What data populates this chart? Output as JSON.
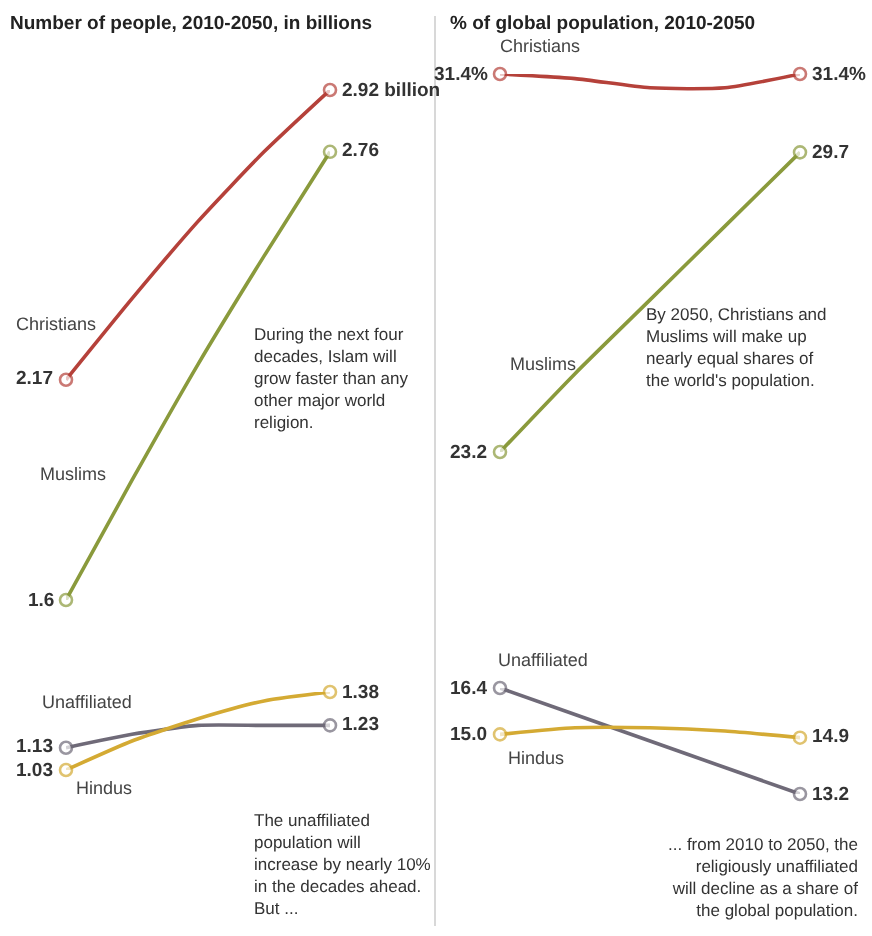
{
  "chart_data": [
    {
      "type": "line",
      "title": "Number of people, 2010-2050, in billions",
      "categories": [
        null,
        null,
        null,
        null,
        null
      ],
      "series": [
        {
          "name": "Christians",
          "color": "#b5413a",
          "values": [
            2.17,
            2.38,
            2.58,
            2.76,
            2.92
          ],
          "value_labels": [
            "2.17",
            null,
            null,
            null,
            "2.92 billion"
          ]
        },
        {
          "name": "Muslims",
          "color": "#8a9a3c",
          "values": [
            1.6,
            1.91,
            2.21,
            2.49,
            2.76
          ],
          "value_labels": [
            "1.6",
            null,
            null,
            null,
            "2.76"
          ]
        }
      ],
      "annotations": [
        "During the next four decades, Islam will grow faster than any other major world religion."
      ]
    },
    {
      "type": "line",
      "categories": [
        null,
        null,
        null,
        null,
        null
      ],
      "series": [
        {
          "name": "Unaffiliated",
          "color": "#6f6a78",
          "values": [
            1.13,
            1.19,
            1.23,
            1.23,
            1.23
          ],
          "value_labels": [
            "1.13",
            null,
            null,
            null,
            "1.23"
          ]
        },
        {
          "name": "Hindus",
          "color": "#d4aa33",
          "values": [
            1.03,
            1.16,
            1.26,
            1.34,
            1.38
          ],
          "value_labels": [
            "1.03",
            null,
            null,
            null,
            "1.38"
          ]
        }
      ],
      "annotations": [
        "The unaffiliated population will increase by nearly 10% in the decades ahead. But ..."
      ]
    },
    {
      "type": "line",
      "title": "% of global population, 2010-2050",
      "categories": [
        null,
        null,
        null,
        null,
        null
      ],
      "series": [
        {
          "name": "Christians",
          "color": "#b5413a",
          "values": [
            31.4,
            31.3,
            31.1,
            31.1,
            31.4
          ],
          "value_labels": [
            "31.4%",
            null,
            null,
            null,
            "31.4%"
          ]
        },
        {
          "name": "Muslims",
          "color": "#8a9a3c",
          "values": [
            23.2,
            24.9,
            26.5,
            28.1,
            29.7
          ],
          "value_labels": [
            "23.2",
            null,
            null,
            null,
            "29.7"
          ]
        }
      ],
      "annotations": [
        "By 2050, Christians and Muslims will make up nearly equal shares of the world's population."
      ]
    },
    {
      "type": "line",
      "categories": [
        null,
        null,
        null,
        null,
        null
      ],
      "series": [
        {
          "name": "Unaffiliated",
          "color": "#6f6a78",
          "values": [
            16.4,
            15.6,
            14.8,
            14.0,
            13.2
          ],
          "value_labels": [
            "16.4",
            null,
            null,
            null,
            "13.2"
          ]
        },
        {
          "name": "Hindus",
          "color": "#d4aa33",
          "values": [
            15.0,
            15.2,
            15.2,
            15.1,
            14.9
          ],
          "value_labels": [
            "15.0",
            null,
            null,
            null,
            "14.9"
          ]
        }
      ],
      "annotations": [
        "... from 2010 to 2050, the religiously unaffiliated will decline as a share of the global population."
      ]
    }
  ]
}
